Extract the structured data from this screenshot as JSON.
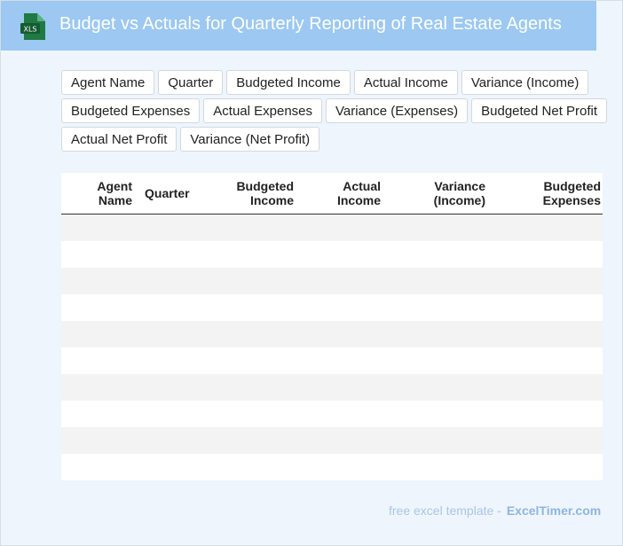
{
  "header": {
    "title": "Budget vs Actuals for Quarterly Reporting of Real Estate Agents",
    "icon_label": "XLS"
  },
  "chips": [
    "Agent Name",
    "Quarter",
    "Budgeted Income",
    "Actual Income",
    "Variance (Income)",
    "Budgeted Expenses",
    "Actual Expenses",
    "Variance (Expenses)",
    "Budgeted Net Profit",
    "Actual Net Profit",
    "Variance (Net Profit)"
  ],
  "table": {
    "columns": [
      [
        "Agent",
        "Name"
      ],
      [
        "Quarter"
      ],
      [
        "Budgeted",
        "Income"
      ],
      [
        "Actual",
        "Income"
      ],
      [
        "Variance",
        "(Income)"
      ],
      [
        "Budgeted",
        "Expenses"
      ]
    ],
    "row_count": 10
  },
  "footer": {
    "text": "free excel template -",
    "brand": "ExcelTimer.com"
  },
  "colors": {
    "header_bg": "#9cc8f2",
    "page_bg": "#eef5fd",
    "icon_green": "#1f7a44"
  }
}
